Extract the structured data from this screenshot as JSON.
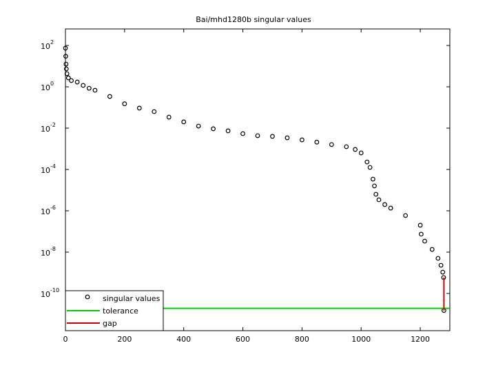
{
  "chart_data": {
    "type": "scatter",
    "title": "Bai/mhd1280b singular values",
    "log_y": true,
    "xlim": [
      0,
      1300
    ],
    "xticks": [
      0,
      200,
      400,
      600,
      800,
      1000,
      1200
    ],
    "ylim": [
      1.58e-12,
      631
    ],
    "yticks": [
      {
        "value": 100.0,
        "label": "10",
        "exponent": "2"
      },
      {
        "value": 1.0,
        "label": "10",
        "exponent": "0"
      },
      {
        "value": 0.01,
        "label": "10",
        "exponent": "-2"
      },
      {
        "value": 0.0001,
        "label": "10",
        "exponent": "-4"
      },
      {
        "value": 1e-06,
        "label": "10",
        "exponent": "-6"
      },
      {
        "value": 1e-08,
        "label": "10",
        "exponent": "-8"
      },
      {
        "value": 1e-10,
        "label": "10",
        "exponent": "-10"
      }
    ],
    "series": [
      {
        "name": "singular values",
        "color": "#000000",
        "x": [
          0,
          1,
          2,
          3,
          5,
          10,
          20,
          40,
          60,
          80,
          100,
          150,
          200,
          250,
          300,
          350,
          400,
          450,
          500,
          550,
          600,
          650,
          700,
          750,
          800,
          850,
          900,
          950,
          980,
          1000,
          1020,
          1030,
          1040,
          1045,
          1050,
          1060,
          1080,
          1100,
          1150,
          1200,
          1203,
          1215,
          1240,
          1260,
          1270,
          1276,
          1279,
          1280
        ],
        "values": [
          74,
          30,
          12.6,
          7.4,
          4.3,
          2.7,
          2.0,
          1.7,
          1.17,
          0.85,
          0.68,
          0.34,
          0.15,
          0.093,
          0.063,
          0.034,
          0.02,
          0.0126,
          0.0093,
          0.0074,
          0.0054,
          0.0043,
          0.004,
          0.0034,
          0.0027,
          0.0021,
          0.0016,
          0.00126,
          0.00093,
          0.00063,
          0.00023,
          0.000126,
          3.4e-05,
          1.6e-05,
          6.3e-06,
          3.4e-06,
          2e-06,
          1.35e-06,
          5.9e-07,
          2e-07,
          7.4e-08,
          3.4e-08,
          1.35e-08,
          5e-09,
          2.3e-09,
          1.07e-09,
          5.9e-10,
          1.5e-11
        ]
      }
    ],
    "tolerance": {
      "name": "tolerance",
      "color": "#00cc00",
      "value": 1.9e-11
    },
    "gap": {
      "name": "gap",
      "color": "#cc0000",
      "x": 1280,
      "values": [
        5.9e-10,
        1.5e-11
      ]
    },
    "legend": "lower left"
  }
}
